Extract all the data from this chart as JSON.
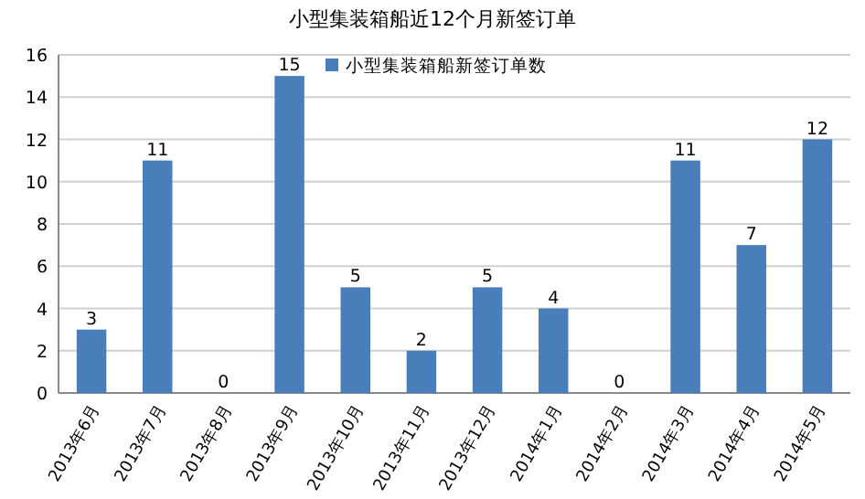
{
  "chart_data": {
    "type": "bar",
    "title": "小型集装箱船近12个月新签订单",
    "categories": [
      "2013年6月",
      "2013年7月",
      "2013年8月",
      "2013年9月",
      "2013年10月",
      "2013年11月",
      "2013年12月",
      "2014年1月",
      "2014年2月",
      "2014年3月",
      "2014年4月",
      "2014年5月"
    ],
    "series": [
      {
        "name": "小型集装箱船新签订单数",
        "color": "#4a7ebb",
        "values": [
          3,
          11,
          0,
          15,
          5,
          2,
          5,
          4,
          0,
          11,
          7,
          12
        ]
      }
    ],
    "ylim": [
      0,
      16
    ],
    "yticks": [
      0,
      2,
      4,
      6,
      8,
      10,
      12,
      14,
      16
    ],
    "grid": "y",
    "legend": "top",
    "data_labels": true
  }
}
